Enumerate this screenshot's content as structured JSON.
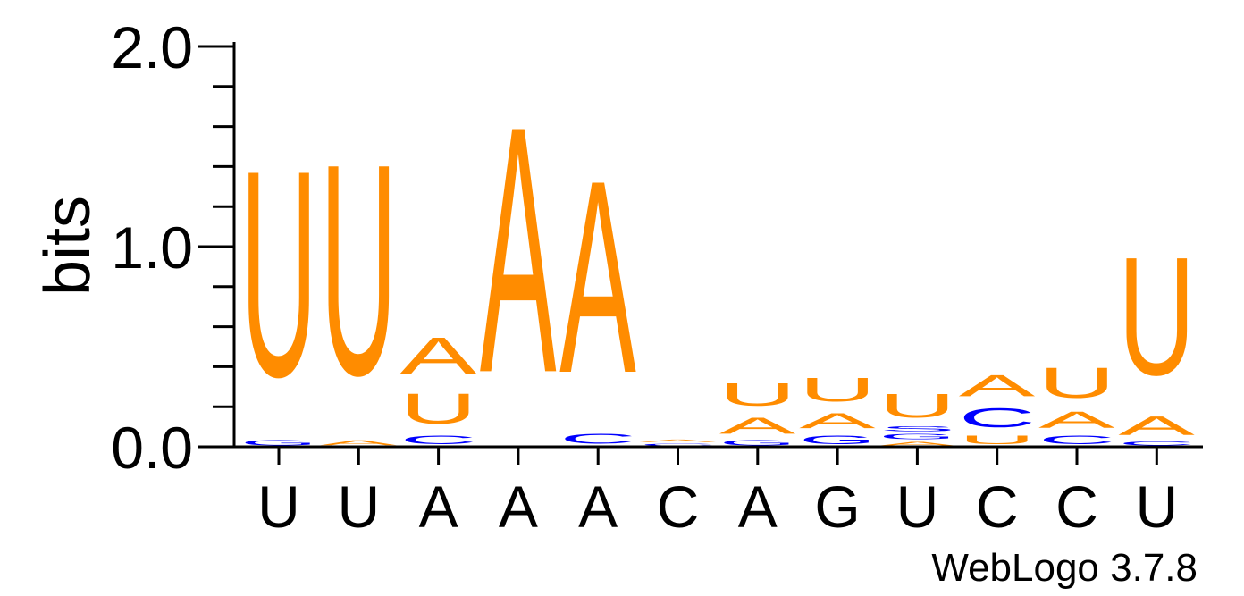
{
  "chart_data": {
    "type": "sequence-logo",
    "ylabel": "bits",
    "ylim": [
      0,
      2.0
    ],
    "yticks": [
      {
        "value": 0,
        "label": "0.0"
      },
      {
        "value": 1,
        "label": "1.0"
      },
      {
        "value": 2,
        "label": "2.0"
      }
    ],
    "yminor_step": 0.2,
    "footer": "WebLogo 3.7.8",
    "colors": {
      "U": "#ff8c00",
      "A": "#ff8c00",
      "C": "#0000ff",
      "G": "#0000ff"
    },
    "positions": [
      {
        "consensus": "U",
        "stack": [
          {
            "letter": "G",
            "height": 0.04
          },
          {
            "letter": "U",
            "height": 1.64
          }
        ]
      },
      {
        "consensus": "U",
        "stack": [
          {
            "letter": "A",
            "height": 0.04
          },
          {
            "letter": "U",
            "height": 1.68
          }
        ]
      },
      {
        "consensus": "A",
        "stack": [
          {
            "letter": "C",
            "height": 0.07
          },
          {
            "letter": "U",
            "height": 0.24
          },
          {
            "letter": "A",
            "height": 0.29
          }
        ]
      },
      {
        "consensus": "A",
        "stack": [
          {
            "letter": "A",
            "height": 1.96
          }
        ]
      },
      {
        "consensus": "A",
        "stack": [
          {
            "letter": "C",
            "height": 0.08
          },
          {
            "letter": "A",
            "height": 1.53
          }
        ]
      },
      {
        "consensus": "C",
        "stack": [
          {
            "letter": "C",
            "height": 0.02
          },
          {
            "letter": "A",
            "height": 0.02
          }
        ]
      },
      {
        "consensus": "A",
        "stack": [
          {
            "letter": "G",
            "height": 0.04
          },
          {
            "letter": "A",
            "height": 0.13
          },
          {
            "letter": "U",
            "height": 0.18
          }
        ]
      },
      {
        "consensus": "G",
        "stack": [
          {
            "letter": "G",
            "height": 0.07
          },
          {
            "letter": "A",
            "height": 0.12
          },
          {
            "letter": "U",
            "height": 0.19
          }
        ]
      },
      {
        "consensus": "U",
        "stack": [
          {
            "letter": "A",
            "height": 0.03
          },
          {
            "letter": "G",
            "height": 0.04
          },
          {
            "letter": "S",
            "height": 0.04
          },
          {
            "letter": "U",
            "height": 0.19
          }
        ]
      },
      {
        "consensus": "C",
        "stack": [
          {
            "letter": "U",
            "height": 0.07
          },
          {
            "letter": "C",
            "height": 0.15
          },
          {
            "letter": "A",
            "height": 0.17
          }
        ]
      },
      {
        "consensus": "C",
        "stack": [
          {
            "letter": "C",
            "height": 0.07
          },
          {
            "letter": "A",
            "height": 0.13
          },
          {
            "letter": "U",
            "height": 0.24
          }
        ]
      },
      {
        "consensus": "U",
        "stack": [
          {
            "letter": "C",
            "height": 0.03
          },
          {
            "letter": "A",
            "height": 0.15
          },
          {
            "letter": "U",
            "height": 0.94
          }
        ]
      }
    ]
  }
}
